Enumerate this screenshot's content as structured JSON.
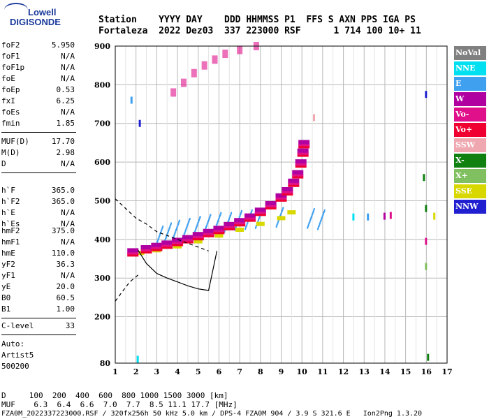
{
  "logo": {
    "line1": "Lowell",
    "line2": "DIGISONDE"
  },
  "header": {
    "labels": "Station    YYYY DAY    DDD HHMMSS P1  FFS S AXN PPS IGA PS",
    "values": "Fortaleza  2022 Dez03  337 223000 RSF      1 714 100 10+ 11"
  },
  "params": {
    "group1": [
      {
        "name": "foF2",
        "value": "5.950"
      },
      {
        "name": "foF1",
        "value": "N/A"
      },
      {
        "name": "foF1p",
        "value": "N/A"
      },
      {
        "name": "foE",
        "value": "N/A"
      },
      {
        "name": "foEp",
        "value": "0.53"
      },
      {
        "name": "fxI",
        "value": "6.25"
      },
      {
        "name": "foEs",
        "value": "N/A"
      },
      {
        "name": "fmin",
        "value": "1.85"
      }
    ],
    "group2": [
      {
        "name": "MUF(D)",
        "value": "17.70"
      },
      {
        "name": "M(D)",
        "value": "2.98"
      },
      {
        "name": "D",
        "value": "N/A"
      }
    ],
    "group3": [
      {
        "name": "h`F",
        "value": "365.0"
      },
      {
        "name": "h`F2",
        "value": "365.0"
      },
      {
        "name": "h`E",
        "value": "N/A"
      },
      {
        "name": "h`Es",
        "value": "N/A"
      }
    ],
    "group4": [
      {
        "name": "hmF2",
        "value": "375.0"
      },
      {
        "name": "hmF1",
        "value": "N/A"
      },
      {
        "name": "hmE",
        "value": "110.0"
      },
      {
        "name": "yF2",
        "value": "36.3"
      },
      {
        "name": "yF1",
        "value": "N/A"
      },
      {
        "name": "yE",
        "value": "20.0"
      },
      {
        "name": "B0",
        "value": "60.5"
      },
      {
        "name": "B1",
        "value": "1.00"
      }
    ],
    "group5": [
      {
        "name": "C-level",
        "value": "33"
      }
    ],
    "auto": [
      "Auto:",
      "Artist5",
      "500200"
    ]
  },
  "legend": [
    {
      "label": "NoVal",
      "color": "#808080"
    },
    {
      "label": "NNE",
      "color": "#00e0f0"
    },
    {
      "label": "E",
      "color": "#3fa0f0"
    },
    {
      "label": "W",
      "color": "#b000a0"
    },
    {
      "label": "Vo-",
      "color": "#e0108a"
    },
    {
      "label": "Vo+",
      "color": "#f00030"
    },
    {
      "label": "SSW",
      "color": "#f0a8b0"
    },
    {
      "label": "X-",
      "color": "#108010"
    },
    {
      "label": "X+",
      "color": "#80c060"
    },
    {
      "label": "SSE",
      "color": "#d8d800"
    },
    {
      "label": "NNW",
      "color": "#2020d0"
    }
  ],
  "bottom": {
    "d_line": "D     100  200  400  600  800 1000 1500 3000 [km]",
    "muf_line": "MUF    6.3  6.4  6.6  7.0  7.7  8.5 11.1 17.7 [MHz]",
    "file_line": "FZA0M_2022337223000.RSF / 320fx256h 50 kHz 5.0 km / DPS-4 FZA0M 904 / 3.9 S 321.6 E   Ion2Png 1.3.20"
  },
  "chart_data": {
    "type": "scatter",
    "xlim": [
      1,
      17
    ],
    "ylim": [
      80,
      900
    ],
    "xticks": [
      "1",
      "2",
      "3",
      "4",
      "5",
      "6",
      "7",
      "8",
      "9",
      "10",
      "11",
      "12",
      "13",
      "14",
      "15",
      "16",
      "17"
    ],
    "yticks": [
      "80",
      "200",
      "300",
      "400",
      "500",
      "600",
      "700",
      "800",
      "900"
    ],
    "grid": true,
    "ordinary_trace": [
      [
        1.85,
        370
      ],
      [
        2.5,
        378
      ],
      [
        3,
        384
      ],
      [
        3.5,
        390
      ],
      [
        4,
        397
      ],
      [
        4.5,
        404
      ],
      [
        5,
        412
      ],
      [
        5.5,
        420
      ],
      [
        6,
        428
      ],
      [
        6.5,
        438
      ],
      [
        7,
        448
      ],
      [
        7.5,
        460
      ],
      [
        8,
        475
      ],
      [
        8.5,
        492
      ],
      [
        9,
        512
      ],
      [
        9.3,
        528
      ],
      [
        9.6,
        550
      ],
      [
        9.8,
        572
      ],
      [
        9.95,
        600
      ],
      [
        10.05,
        628
      ],
      [
        10.1,
        650
      ]
    ],
    "extraordinary_trace": [
      [
        2.2,
        365
      ],
      [
        3,
        372
      ],
      [
        4,
        382
      ],
      [
        5,
        395
      ],
      [
        6,
        410
      ],
      [
        7,
        425
      ],
      [
        8,
        440
      ],
      [
        9,
        455
      ],
      [
        9.5,
        470
      ]
    ],
    "spread_F_points": [
      [
        3.2,
        410
      ],
      [
        3.6,
        418
      ],
      [
        4,
        425
      ],
      [
        4.5,
        430
      ],
      [
        5,
        435
      ],
      [
        5.5,
        440
      ],
      [
        6,
        445
      ],
      [
        6.5,
        445
      ],
      [
        7,
        450
      ],
      [
        7.5,
        452
      ],
      [
        8,
        455
      ],
      [
        9,
        458
      ],
      [
        10.5,
        455
      ],
      [
        11,
        452
      ]
    ],
    "multihop_trace": [
      [
        3.8,
        780
      ],
      [
        4.3,
        805
      ],
      [
        4.8,
        830
      ],
      [
        5.3,
        850
      ],
      [
        5.8,
        865
      ],
      [
        6.3,
        880
      ],
      [
        7,
        890
      ],
      [
        7.8,
        900
      ]
    ],
    "profile_solid": [
      [
        2.1,
        372
      ],
      [
        2.5,
        338
      ],
      [
        3,
        312
      ],
      [
        3.5,
        300
      ],
      [
        4,
        290
      ],
      [
        4.5,
        280
      ],
      [
        5,
        272
      ],
      [
        5.5,
        268
      ],
      [
        5.9,
        370
      ]
    ],
    "profile_dashed": [
      [
        1,
        505
      ],
      [
        1.5,
        480
      ],
      [
        2,
        455
      ],
      [
        2.5,
        440
      ],
      [
        3,
        420
      ],
      [
        4,
        400
      ],
      [
        5,
        380
      ],
      [
        5.5,
        370
      ],
      [
        1,
        240
      ],
      [
        1.3,
        262
      ],
      [
        1.7,
        290
      ],
      [
        2.1,
        308
      ]
    ]
  }
}
